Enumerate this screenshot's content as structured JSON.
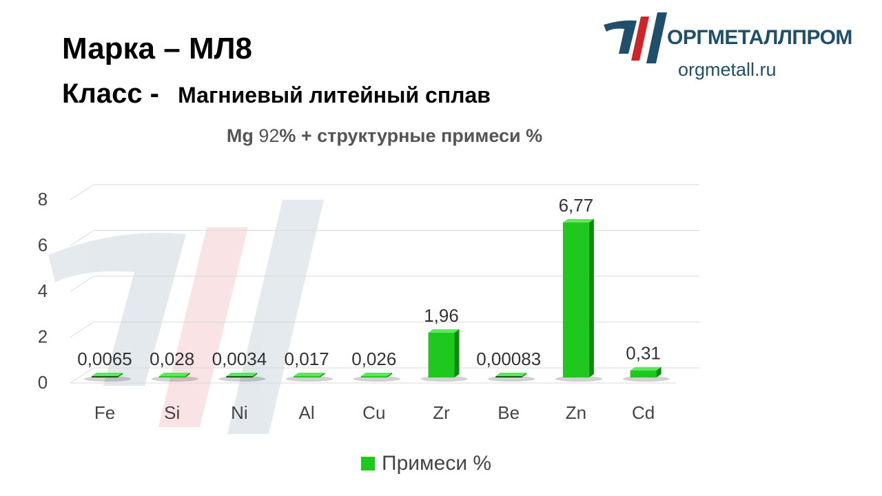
{
  "header": {
    "brand_label": "Марка",
    "brand_dash": "–",
    "brand_value": "МЛ8",
    "class_label": "Класс -",
    "class_value": "Магниевый литейный сплав"
  },
  "logo": {
    "name": "ОРГМЕТАЛЛПРОМ",
    "url": "orgmetall.ru",
    "colors": {
      "primary": "#1f4f6a",
      "accent": "#d0242b"
    }
  },
  "chart_data": {
    "type": "bar",
    "title_parts": [
      "Mg",
      "92",
      "% + структурные примеси %"
    ],
    "categories": [
      "Fe",
      "Si",
      "Ni",
      "Al",
      "Cu",
      "Zr",
      "Be",
      "Zn",
      "Cd"
    ],
    "series": [
      {
        "name": "Примеси %",
        "values": [
          0.0065,
          0.028,
          0.0034,
          0.017,
          0.026,
          1.96,
          0.00083,
          6.77,
          0.31
        ],
        "labels": [
          "0,0065",
          "0,028",
          "0,0034",
          "0,017",
          "0,026",
          "1,96",
          "0,00083",
          "6,77",
          "0,31"
        ],
        "color": "#1ec81e"
      }
    ],
    "ylim": [
      0,
      8
    ],
    "yticks": [
      "0",
      "2",
      "4",
      "6",
      "8"
    ],
    "grid": true,
    "legend_position": "bottom"
  }
}
